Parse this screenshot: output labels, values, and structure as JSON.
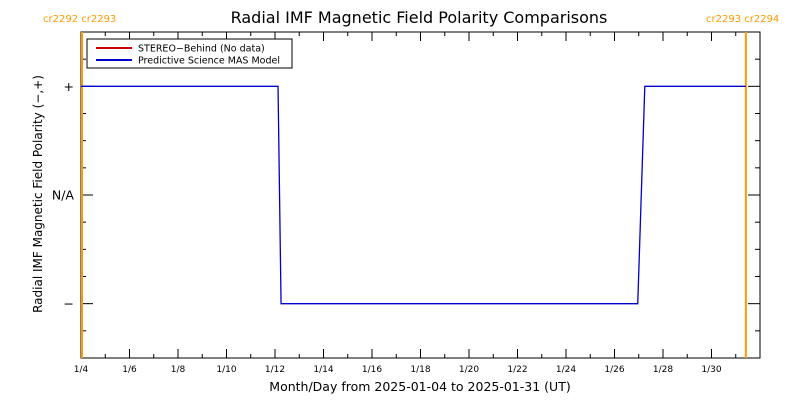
{
  "chart_data": {
    "type": "line",
    "title": "Radial IMF Magnetic Field Polarity Comparisons",
    "xlabel": "Month/Day from 2025-01-04 to 2025-01-31 (UT)",
    "ylabel": "Radial IMF Magnetic Field Polarity (−,+)",
    "xlim": [
      "2025-01-04",
      "2025-02-01"
    ],
    "ylim": [
      -1.5,
      1.5
    ],
    "x_ticks": [
      {
        "date": "2025-01-04",
        "label": "1/4"
      },
      {
        "date": "2025-01-06",
        "label": "1/6"
      },
      {
        "date": "2025-01-08",
        "label": "1/8"
      },
      {
        "date": "2025-01-10",
        "label": "1/10"
      },
      {
        "date": "2025-01-12",
        "label": "1/12"
      },
      {
        "date": "2025-01-14",
        "label": "1/14"
      },
      {
        "date": "2025-01-16",
        "label": "1/16"
      },
      {
        "date": "2025-01-18",
        "label": "1/18"
      },
      {
        "date": "2025-01-20",
        "label": "1/20"
      },
      {
        "date": "2025-01-22",
        "label": "1/22"
      },
      {
        "date": "2025-01-24",
        "label": "1/24"
      },
      {
        "date": "2025-01-26",
        "label": "1/26"
      },
      {
        "date": "2025-01-28",
        "label": "1/28"
      },
      {
        "date": "2025-01-30",
        "label": "1/30"
      }
    ],
    "y_ticks": [
      {
        "value": 1,
        "label": "+"
      },
      {
        "value": 0,
        "label": "N/A"
      },
      {
        "value": -1,
        "label": "−"
      }
    ],
    "legend_position": "top-left",
    "series": [
      {
        "name": "STEREO−Behind (No data)",
        "color": "#cc0000",
        "points": []
      },
      {
        "name": "Predictive Science MAS Model",
        "color": "#0000cc",
        "points": [
          {
            "x": "2025-01-04T00:00",
            "y": 1
          },
          {
            "x": "2025-01-12T03:00",
            "y": 1
          },
          {
            "x": "2025-01-12T06:00",
            "y": -1
          },
          {
            "x": "2025-01-26T23:00",
            "y": -1
          },
          {
            "x": "2025-01-27T06:00",
            "y": 1
          },
          {
            "x": "2025-01-31T10:00",
            "y": 1
          }
        ]
      }
    ],
    "carrington_markers": [
      {
        "date": "2025-01-04T01:00",
        "labels": [
          "cr2292",
          "cr2293"
        ],
        "side": "left"
      },
      {
        "date": "2025-01-31T10:00",
        "labels": [
          "cr2293",
          "cr2294"
        ],
        "side": "right"
      }
    ],
    "marker_color": "#ff9900",
    "grid": false
  }
}
